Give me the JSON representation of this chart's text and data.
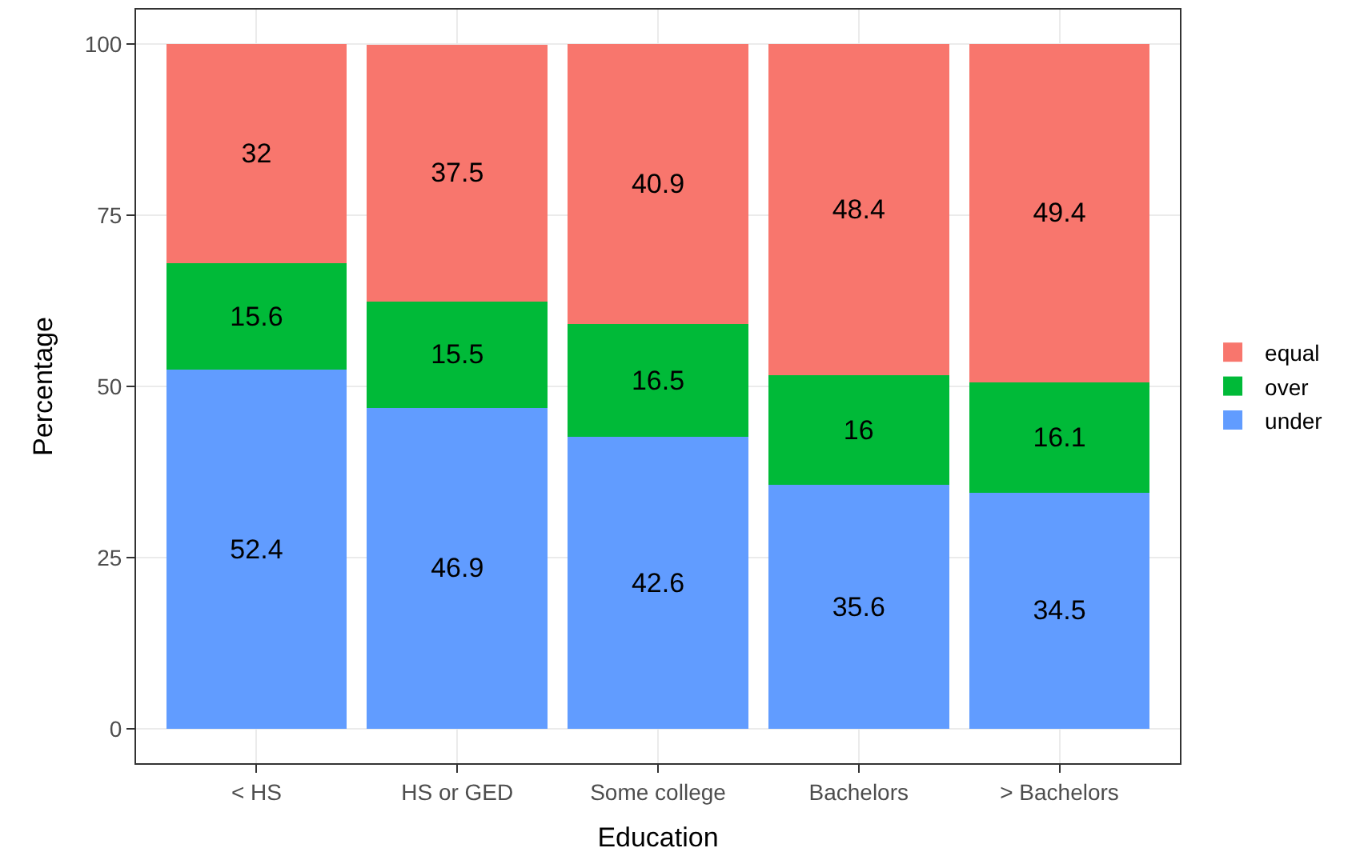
{
  "chart_data": {
    "type": "bar",
    "stacked": true,
    "xlabel": "Education",
    "ylabel": "Percentage",
    "categories": [
      "< HS",
      "HS or GED",
      "Some college",
      "Bachelors",
      "> Bachelors"
    ],
    "series": [
      {
        "name": "under",
        "color": "#619cff",
        "values": [
          52.4,
          46.9,
          42.6,
          35.6,
          34.5
        ]
      },
      {
        "name": "over",
        "color": "#00ba38",
        "values": [
          15.6,
          15.5,
          16.5,
          16,
          16.1
        ]
      },
      {
        "name": "equal",
        "color": "#f8766d",
        "values": [
          32,
          37.5,
          40.9,
          48.4,
          49.4
        ]
      }
    ],
    "ylim": [
      -5,
      105
    ],
    "yticks": [
      0,
      25,
      50,
      75,
      100
    ],
    "grid": true,
    "legend": "right",
    "data_labels": true
  }
}
